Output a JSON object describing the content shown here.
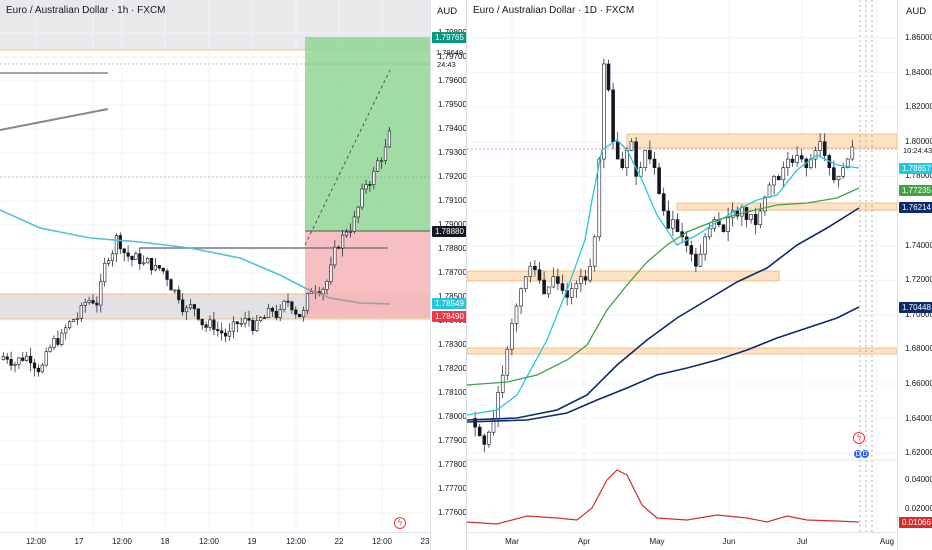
{
  "left": {
    "title": "Euro / Australian Dollar · 1h · FXCM",
    "currency": "AUD",
    "countdown": "24:43",
    "y_ticks": [
      "1.79800",
      "1.79700",
      "1.79600",
      "1.79500",
      "1.79400",
      "1.79300",
      "1.79200",
      "1.79100",
      "1.79000",
      "1.78800",
      "1.78700",
      "1.78500",
      "1.78400",
      "1.78300",
      "1.78200",
      "1.78100",
      "1.78000",
      "1.77900",
      "1.77800",
      "1.77700",
      "1.77600"
    ],
    "x_ticks": [
      "12:00",
      "17",
      "12:00",
      "18",
      "12:00",
      "19",
      "12:00",
      "22",
      "12:00",
      "23"
    ],
    "tags": {
      "target": "1.79765",
      "current": "1.79649",
      "entry": "1.78880",
      "ma": "1.78549",
      "stop": "1.78490"
    },
    "alert_icon": "lightning-icon"
  },
  "right": {
    "title": "Euro / Australian Dollar · 1D · FXCM",
    "currency": "AUD",
    "countdown": "10:24:43",
    "y_ticks": [
      "1.86000",
      "1.84000",
      "1.82000",
      "1.80000",
      "1.78000",
      "1.76000",
      "1.74000",
      "1.72000",
      "1.70000",
      "1.68000",
      "1.66000",
      "1.64000",
      "1.62000"
    ],
    "osc_ticks": [
      "0.04000",
      "0.02000"
    ],
    "x_ticks": [
      "Mar",
      "Apr",
      "May",
      "Jun",
      "Jul",
      "Aug"
    ],
    "tags": {
      "price": "1.78657",
      "ema_fast": "1.77235",
      "ema_mid": "1.76214",
      "ema_slow": "1.70448",
      "osc": "0.01066"
    },
    "colors": {
      "up": "#ffffff",
      "down": "#131722",
      "ema_cyan": "#26c6da",
      "ema_green": "#43a047",
      "ema_navy": "#0d2a6b",
      "osc_red": "#d32f2f",
      "zone": "#f7c48a"
    }
  }
}
